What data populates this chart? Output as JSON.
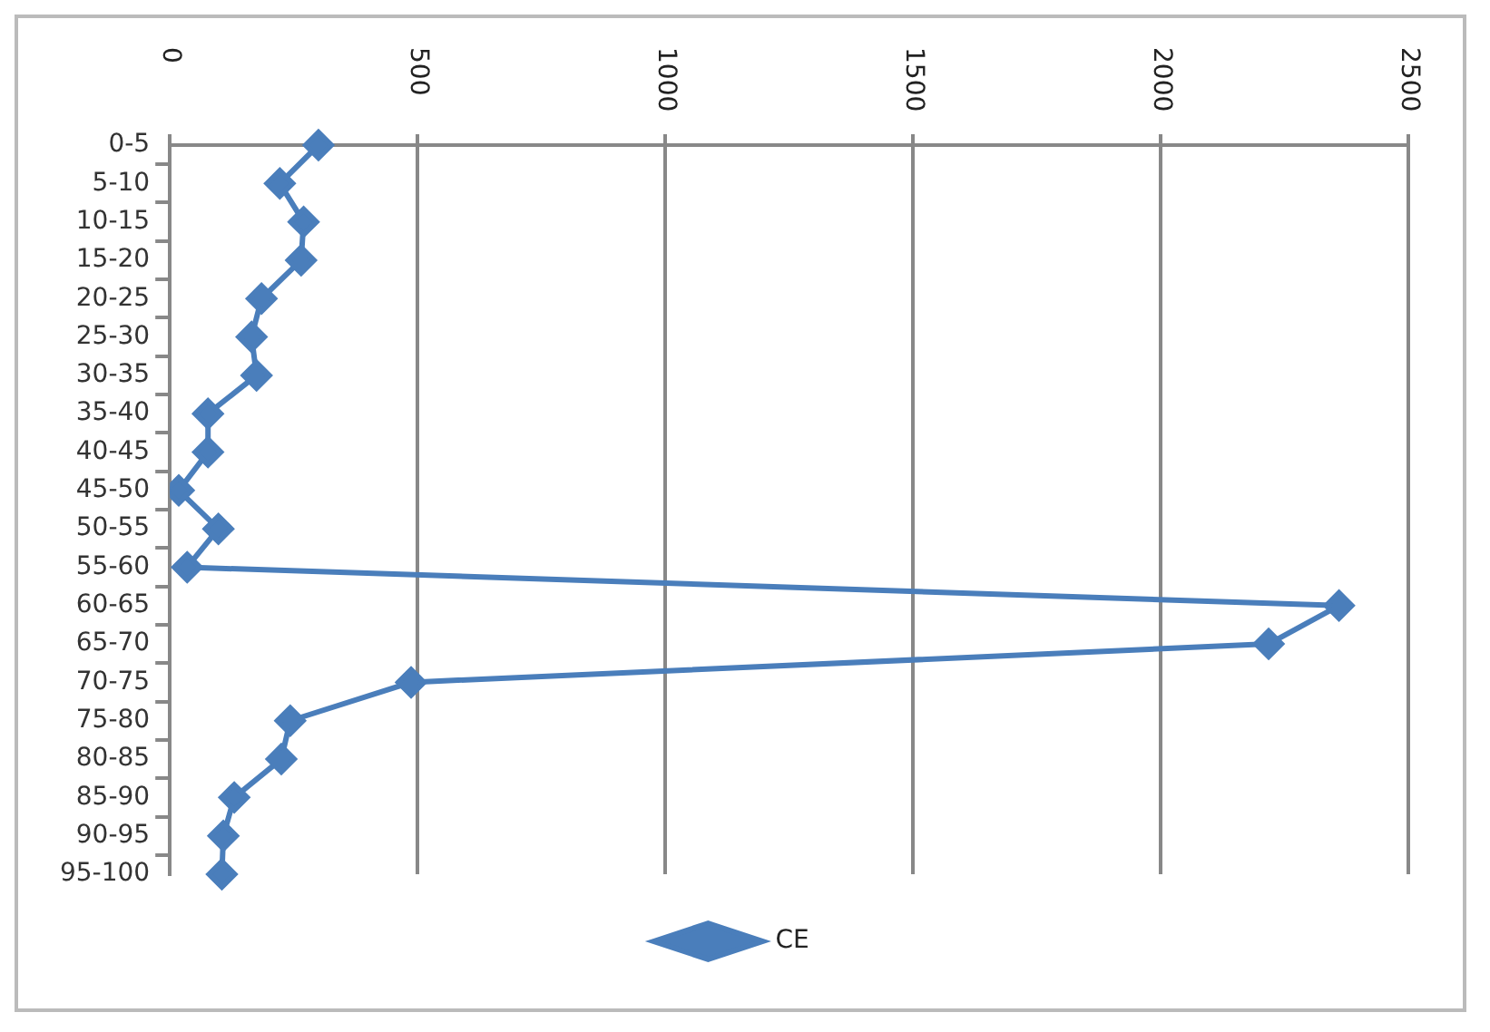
{
  "chart_data": {
    "type": "line",
    "orientation": "horizontal",
    "categories": [
      "0-5",
      "5-10",
      "10-15",
      "15-20",
      "20-25",
      "25-30",
      "30-35",
      "35-40",
      "40-45",
      "45-50",
      "50-55",
      "55-60",
      "60-65",
      "65-70",
      "70-75",
      "75-80",
      "80-85",
      "85-90",
      "90-95",
      "95-100"
    ],
    "series": [
      {
        "name": "CE",
        "color": "#4a7ebb",
        "values": [
          300,
          222,
          270,
          265,
          185,
          165,
          175,
          77,
          77,
          18,
          98,
          35,
          2360,
          2218,
          487,
          243,
          225,
          130,
          108,
          105
        ]
      }
    ],
    "xlim": [
      0,
      2500
    ],
    "xticks": [
      0,
      500,
      1000,
      1500,
      2000,
      2500
    ],
    "grid": "x",
    "legend": "bottom",
    "marker": "diamond",
    "line_style": "solid"
  }
}
